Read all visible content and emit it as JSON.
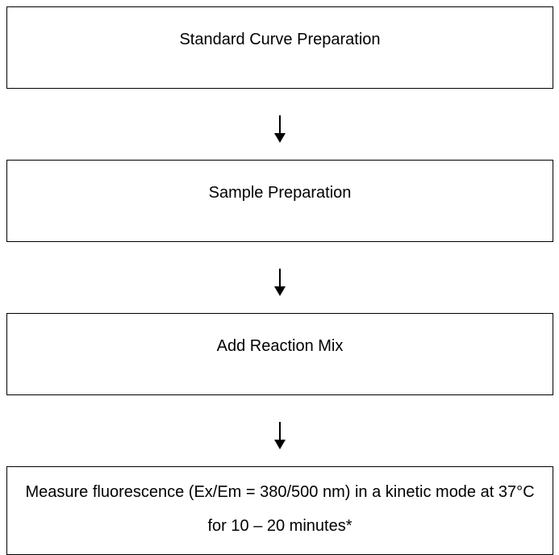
{
  "steps": [
    {
      "label": "Standard Curve Preparation"
    },
    {
      "label": "Sample Preparation"
    },
    {
      "label": "Add Reaction Mix"
    },
    {
      "label": "Measure fluorescence (Ex/Em = 380/500 nm) in a kinetic mode at 37°C for 10 – 20 minutes*"
    }
  ],
  "connectors": [
    {
      "icon": "arrow-down-icon"
    },
    {
      "icon": "arrow-down-icon"
    },
    {
      "icon": "arrow-down-icon"
    }
  ]
}
